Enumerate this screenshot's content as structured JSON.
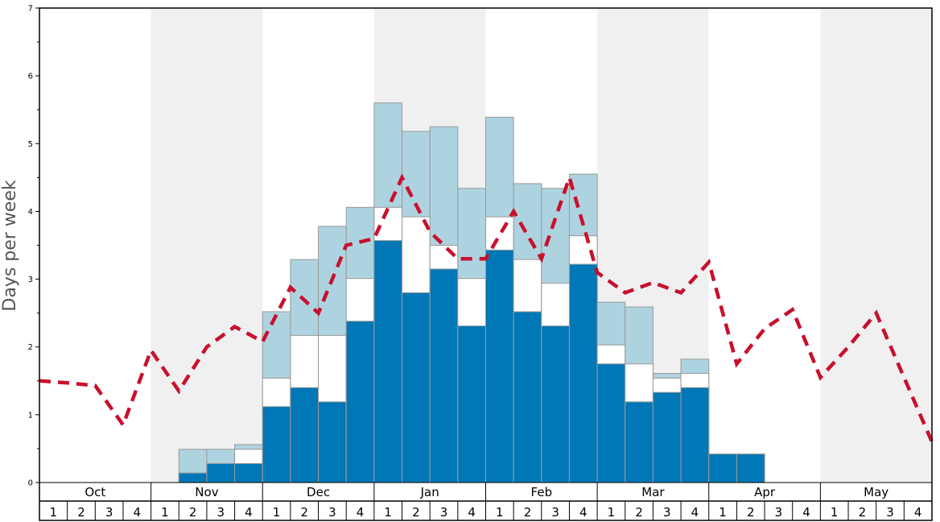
{
  "chart_data": {
    "type": "bar",
    "ylabel": "Days per week",
    "ylim": [
      0,
      7
    ],
    "yticks": [
      0,
      1,
      2,
      3,
      4,
      5,
      6,
      7
    ],
    "months": [
      "Oct",
      "Nov",
      "Dec",
      "Jan",
      "Feb",
      "Mar",
      "Apr",
      "May"
    ],
    "weeks": [
      "1",
      "2",
      "3",
      "4"
    ],
    "grid": false,
    "colors": {
      "top_series": "#aed3e0",
      "middle_series": "#ffffff",
      "bottom_series": "#0077b6",
      "dashed_line": "#c8102e",
      "shaded_month": "#f0f0f0"
    },
    "series": [
      {
        "values": [
          0,
          0,
          0,
          0,
          0,
          0.14,
          0.28,
          0.28,
          1.12,
          1.4,
          1.19,
          2.38,
          3.57,
          2.8,
          3.15,
          2.31,
          3.43,
          2.52,
          2.31,
          3.22,
          1.75,
          1.19,
          1.33,
          1.4,
          0.42,
          0.42,
          0,
          0,
          0,
          0,
          0,
          0
        ]
      },
      {
        "values": [
          0,
          0,
          0,
          0,
          0,
          0.14,
          0.28,
          0.49,
          1.54,
          2.17,
          2.17,
          3.01,
          4.06,
          3.92,
          3.5,
          3.01,
          3.92,
          3.29,
          2.94,
          3.64,
          2.03,
          1.75,
          1.54,
          1.61,
          0.42,
          0.42,
          0,
          0,
          0,
          0,
          0,
          0
        ]
      },
      {
        "values": [
          0,
          0,
          0,
          0,
          0,
          0.49,
          0.49,
          0.56,
          2.52,
          3.29,
          3.78,
          4.06,
          5.6,
          5.18,
          5.25,
          4.34,
          5.39,
          4.41,
          4.34,
          4.55,
          2.66,
          2.59,
          1.61,
          1.82,
          0.42,
          0.42,
          0,
          0,
          0,
          0,
          0,
          0
        ]
      },
      {
        "type": "line",
        "values": [
          1.5,
          1.47,
          1.43,
          0.85,
          1.95,
          1.35,
          2.0,
          2.3,
          2.08,
          2.88,
          2.5,
          3.5,
          3.6,
          4.5,
          3.7,
          3.3,
          3.3,
          4.0,
          3.3,
          4.5,
          3.1,
          2.8,
          2.95,
          2.8,
          3.25,
          1.75,
          2.27,
          2.55,
          1.55,
          2.0,
          2.5,
          1.55,
          0.6
        ]
      }
    ]
  }
}
